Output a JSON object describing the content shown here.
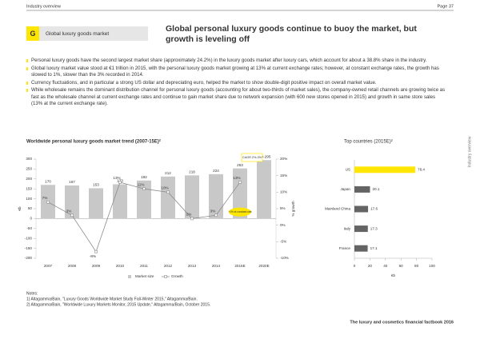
{
  "header": {
    "section": "Industry overview",
    "page": "Page 37"
  },
  "section_tag": {
    "letter": "G",
    "label": "Global luxury goods market"
  },
  "title": "Global personal luxury goods continue to buoy the market, but growth is leveling off",
  "bullets": [
    "Personal luxury goods have the second largest market share (approximately 24.2%) in the luxury goods market after luxury cars, which account for about a 38.8% share in the industry.",
    "Global luxury market value stood at €1 trillion in 2015, with the personal luxury goods market growing at 13% at current exchange rates; however, at constant exchange rates, the growth has slowed to 1%, slower than the 3% recorded in 2014.",
    "Currency fluctuations, and in particular a strong US dollar and depreciating euro, helped the market to show double-digit positive impact on overall market value.",
    "While wholesale remains the dominant distribution channel for personal luxury goods (accounting for about two-thirds of market sales), the company-owned retail channels are growing twice as fast as the wholesale channel at current exchange rates and continue to gain market share due to network expansion (with 600 new stores opened in 2015) and growth in same store sales (13% at the current exchange rate)."
  ],
  "side_label": "Industry overview",
  "chart_data": [
    {
      "type": "combo",
      "title": "Worldwide personal luxury goods market trend (2007-15E)²",
      "categories": [
        "2007",
        "2008",
        "2009",
        "2010",
        "2011",
        "2012",
        "2013",
        "2014",
        "2015E",
        "2020E"
      ],
      "y_label": "€b",
      "y2_label": "% growth",
      "ylim": [
        -200,
        300
      ],
      "yticks": [
        -200,
        -150,
        -100,
        -50,
        0,
        50,
        100,
        150,
        200,
        250,
        300
      ],
      "y2lim": [
        -10,
        20
      ],
      "y2ticks": [
        {
          "value": -10,
          "label": "-10%"
        },
        {
          "value": -5,
          "label": "-5%"
        },
        {
          "value": 0,
          "label": "0%"
        },
        {
          "value": 5,
          "label": "5%"
        },
        {
          "value": 10,
          "label": "10%"
        },
        {
          "value": 15,
          "label": "15%"
        },
        {
          "value": 20,
          "label": "20%"
        }
      ],
      "series": [
        {
          "name": "Market size",
          "kind": "bar",
          "color": "#c8c8c8",
          "values": [
            170,
            167,
            153,
            173,
            192,
            212,
            218,
            224,
            253,
            295
          ],
          "value_labels": [
            "170",
            "167",
            "153",
            "173",
            "192",
            "212",
            "218",
            "224",
            "253",
            "280-295"
          ]
        },
        {
          "name": "Growth",
          "kind": "line",
          "axis": "y2",
          "color": "#8c8c8c",
          "values": [
            7,
            3,
            -8,
            13,
            11,
            10,
            2,
            3,
            13,
            null
          ],
          "value_labels": [
            "7%",
            "3%",
            "-8%",
            "13%",
            "11%",
            "10%",
            "2%",
            "3%",
            "13%",
            null
          ]
        }
      ],
      "annotations": [
        "CAGR 2%-3%",
        "+1% at constant rate"
      ],
      "legend": "bottom"
    },
    {
      "type": "barh",
      "title": "Top countries (2015E)²",
      "categories": [
        "US",
        "Japan",
        "Mainland China",
        "Italy",
        "France"
      ],
      "values": [
        78.4,
        20.1,
        17.6,
        17.3,
        17.1
      ],
      "colors": [
        "#ffe600",
        "#646464",
        "#646464",
        "#646464",
        "#646464"
      ],
      "xlim": [
        0,
        100
      ],
      "xticks": [
        0,
        20,
        40,
        60,
        80,
        100
      ],
      "x_label": "€b"
    }
  ],
  "notes": {
    "heading": "Notes:",
    "items": [
      "1) Altagamma/Bain, \"Luxury Goods Worldwide Market Study Fall-Winter 2015,\" Altagamma/Bain.",
      "2) Altagamma/Bain, \"Worldwide Luxury Markets Monitor, 2015 Update,\" Altagamma/Bain, October 2015."
    ]
  },
  "footer": "The luxury and cosmetics financial factbook 2016"
}
